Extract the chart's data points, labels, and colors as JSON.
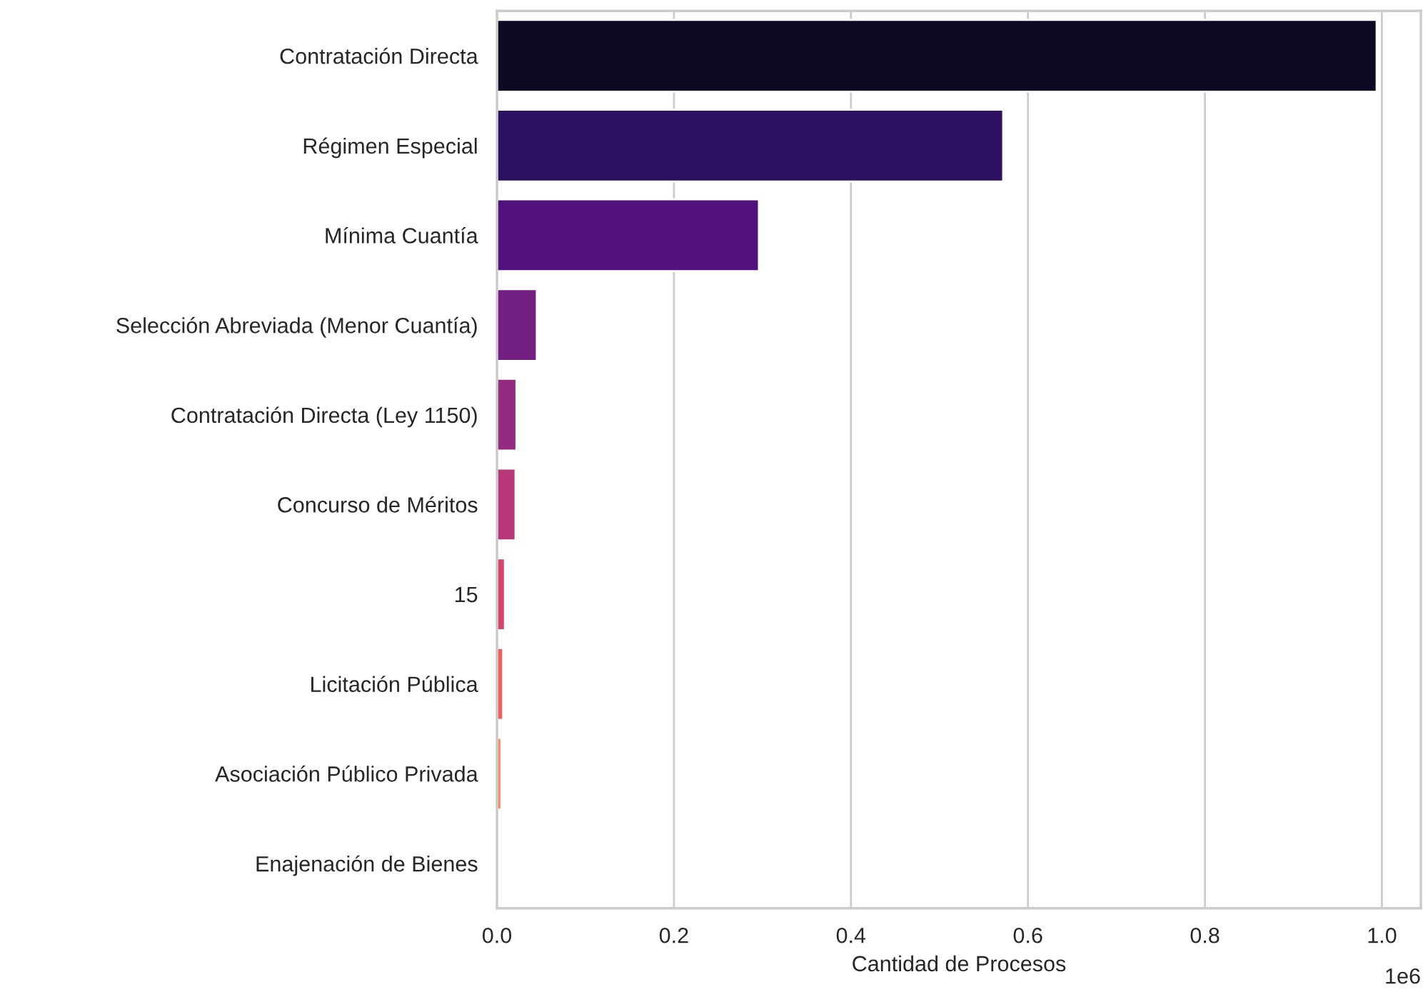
{
  "chart_data": {
    "type": "bar",
    "orientation": "horizontal",
    "xlabel": "Cantidad de Procesos",
    "categories": [
      "Contratación Directa",
      "Régimen Especial",
      "Mínima Cuantía",
      "Selección Abreviada (Menor Cuantía)",
      "Contratación Directa (Ley 1150)",
      "Concurso de Méritos",
      "15",
      "Licitación Pública",
      "Asociación Público Privada",
      "Enajenación de Bienes"
    ],
    "values": [
      0.994,
      0.572,
      0.296,
      0.045,
      0.022,
      0.021,
      0.009,
      0.007,
      0.005,
      null
    ],
    "colors": [
      "#0b0924",
      "#2d1160",
      "#51127c",
      "#721f81",
      "#932b80",
      "#b73779",
      "#d8456c",
      "#f1605d",
      "#fc8961",
      "#feb078"
    ],
    "xlim": [
      0,
      1.044
    ],
    "xticks": [
      {
        "value": 0,
        "label": "0.0"
      },
      0.2,
      0.4,
      0.6,
      0.8,
      {
        "value": 1,
        "label": "1.0"
      }
    ],
    "annotations": [
      "1e6"
    ],
    "grid": "x"
  }
}
